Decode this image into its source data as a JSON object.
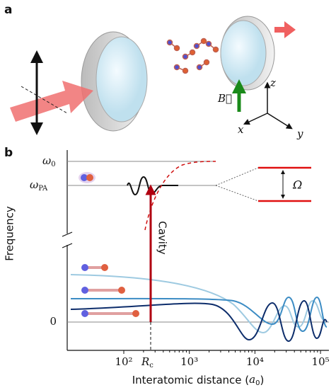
{
  "panel_a": {
    "label": "a",
    "field_label": "B⃗",
    "axes": {
      "x": "x",
      "y": "y",
      "z": "z"
    }
  },
  "panel_b": {
    "label": "b",
    "levels": {
      "omega_0": {
        "symbol": "ω",
        "subscript": "0"
      },
      "omega_pa": {
        "symbol": "ω",
        "subscript": "PA"
      },
      "zero": "0"
    },
    "rabi_label": "Ω",
    "arrow_label": "Cavity",
    "y_axis_label": "Frequency",
    "x_ticks": [
      "10²",
      "10³",
      "10⁴",
      "10⁵"
    ],
    "rc_label": {
      "symbol": "R",
      "subscript": "c"
    },
    "x_axis_label": {
      "text": "Interatomic distance (",
      "symbol": "a",
      "subscript": "0",
      "close": ")"
    }
  }
}
